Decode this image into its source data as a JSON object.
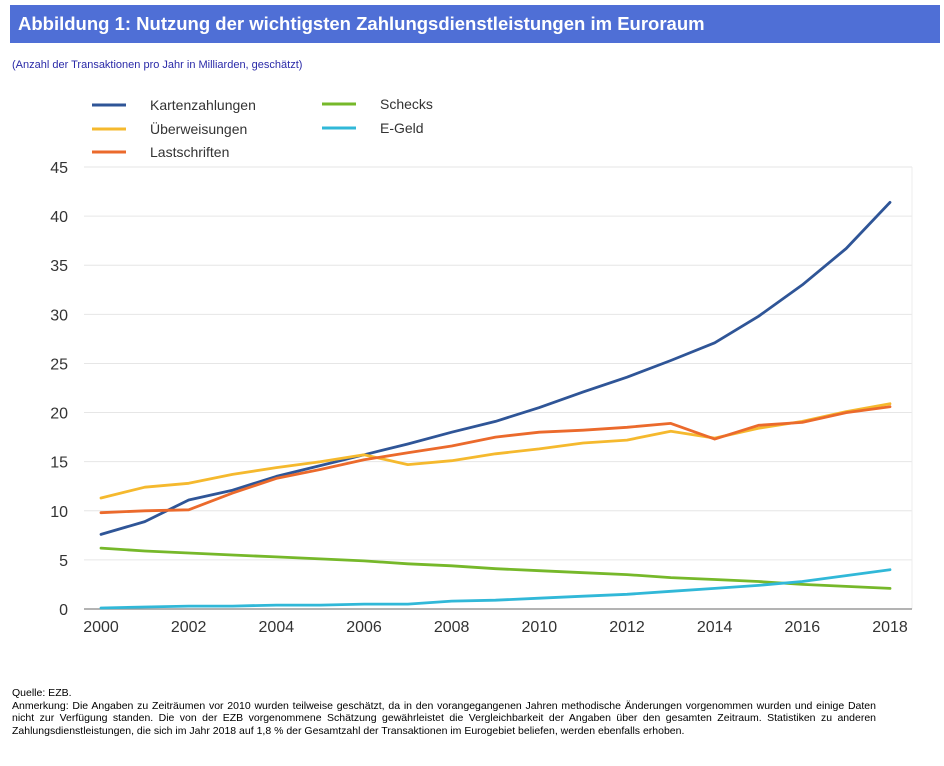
{
  "header": {
    "title": "Abbildung 1: Nutzung der wichtigsten Zahlungsdienstleistungen im Euroraum",
    "subtitle": "(Anzahl der Transaktionen pro Jahr in Milliarden, geschätzt)"
  },
  "colors": {
    "title_background": "#4f6fd6",
    "title_text": "#ffffff",
    "subtitle_text": "#2a2aa8"
  },
  "chart_data": {
    "type": "line",
    "title": "",
    "xlabel": "",
    "ylabel": "",
    "x": [
      2000,
      2001,
      2002,
      2003,
      2004,
      2005,
      2006,
      2007,
      2008,
      2009,
      2010,
      2011,
      2012,
      2013,
      2014,
      2015,
      2016,
      2017,
      2018
    ],
    "xlim": [
      2000,
      2018
    ],
    "ylim": [
      0,
      45
    ],
    "x_ticks": [
      "2000",
      "2002",
      "2004",
      "2006",
      "2008",
      "2010",
      "2012",
      "2014",
      "2016",
      "2018"
    ],
    "y_ticks": [
      "0",
      "5",
      "10",
      "15",
      "20",
      "25",
      "30",
      "35",
      "40",
      "45"
    ],
    "grid": "horizontal",
    "legend_position": "top-left",
    "series": [
      {
        "name": "Kartenzahlungen",
        "color": "#2f5597",
        "values": [
          7.6,
          8.9,
          11.1,
          12.1,
          13.5,
          14.6,
          15.7,
          16.8,
          18.0,
          19.1,
          20.5,
          22.1,
          23.6,
          25.3,
          27.1,
          29.8,
          33.0,
          36.7,
          41.4
        ]
      },
      {
        "name": "Überweisungen",
        "color": "#f5b92e",
        "values": [
          11.3,
          12.4,
          12.8,
          13.7,
          14.4,
          15.0,
          15.7,
          14.7,
          15.1,
          15.8,
          16.3,
          16.9,
          17.2,
          18.1,
          17.4,
          18.4,
          19.1,
          20.1,
          20.9
        ]
      },
      {
        "name": "Lastschriften",
        "color": "#eb6a2c",
        "values": [
          9.8,
          10.0,
          10.1,
          11.8,
          13.3,
          14.2,
          15.2,
          15.9,
          16.6,
          17.5,
          18.0,
          18.2,
          18.5,
          18.9,
          17.3,
          18.7,
          19.0,
          20.0,
          20.6
        ]
      },
      {
        "name": "Schecks",
        "color": "#76b82a",
        "values": [
          6.2,
          5.9,
          5.7,
          5.5,
          5.3,
          5.1,
          4.9,
          4.6,
          4.4,
          4.1,
          3.9,
          3.7,
          3.5,
          3.2,
          3.0,
          2.8,
          2.5,
          2.3,
          2.1
        ]
      },
      {
        "name": "E-Geld",
        "color": "#31b8d8",
        "values": [
          0.1,
          0.2,
          0.3,
          0.3,
          0.4,
          0.4,
          0.5,
          0.5,
          0.8,
          0.9,
          1.1,
          1.3,
          1.5,
          1.8,
          2.1,
          2.4,
          2.8,
          3.4,
          4.0
        ]
      }
    ]
  },
  "notes": {
    "source": "Quelle: EZB.",
    "remark": "Anmerkung: Die Angaben zu Zeiträumen vor 2010 wurden teilweise geschätzt, da in den vorangegangenen Jahren methodische Änderungen vorgenommen wurden und einige Daten nicht zur Verfügung standen. Die von der EZB vorgenommene Schätzung gewährleistet die Vergleichbarkeit der Angaben über den gesamten Zeitraum. Statistiken zu anderen Zahlungsdienstleistungen, die sich im Jahr 2018 auf 1,8 % der Gesamtzahl der Transaktionen im Eurogebiet beliefen, werden ebenfalls erhoben."
  }
}
